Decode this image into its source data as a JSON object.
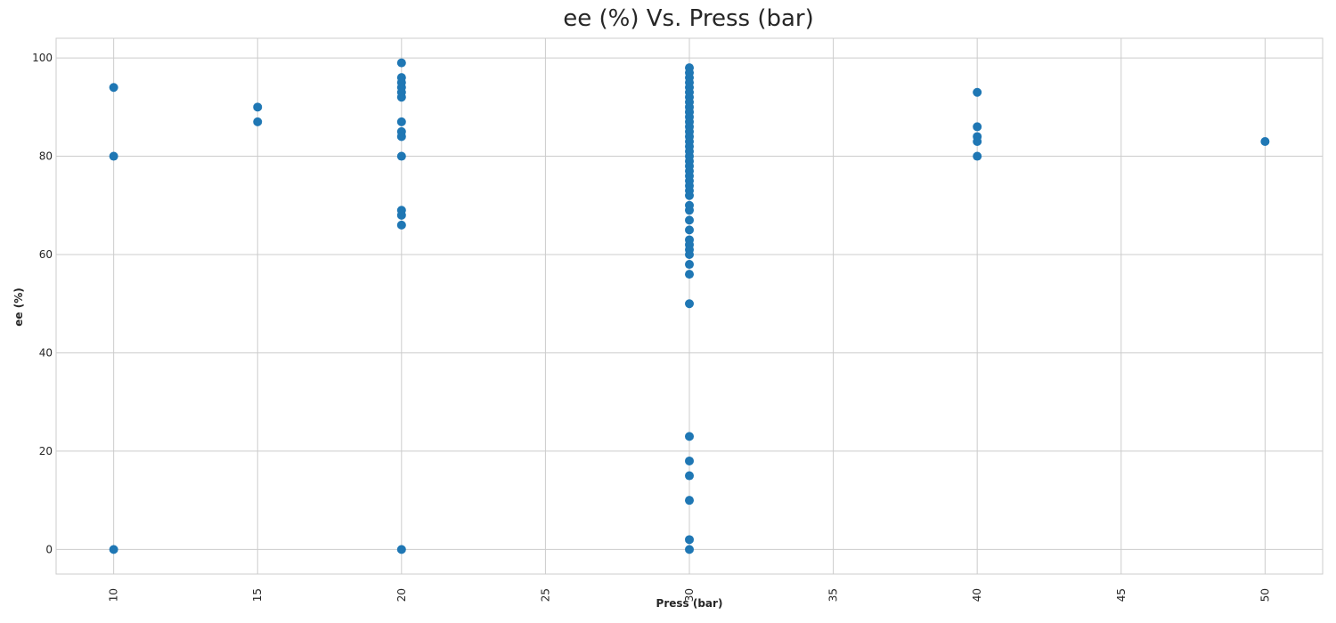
{
  "chart_data": {
    "type": "scatter",
    "title": "ee (%) Vs. Press (bar)",
    "xlabel": "Press (bar)",
    "ylabel": "ee (%)",
    "xlim": [
      8,
      52
    ],
    "ylim": [
      -5,
      104
    ],
    "xticks": [
      "10",
      "15",
      "20",
      "25",
      "30",
      "35",
      "40",
      "45",
      "50"
    ],
    "yticks": [
      "0",
      "20",
      "40",
      "60",
      "80",
      "100"
    ],
    "grid": true,
    "legend": "none",
    "marker_color": "#1f77b4",
    "grid_color": "#cccccc",
    "points": [
      {
        "x": 10,
        "y": 94
      },
      {
        "x": 10,
        "y": 80
      },
      {
        "x": 10,
        "y": 0
      },
      {
        "x": 15,
        "y": 90
      },
      {
        "x": 15,
        "y": 87
      },
      {
        "x": 20,
        "y": 99
      },
      {
        "x": 20,
        "y": 96
      },
      {
        "x": 20,
        "y": 95
      },
      {
        "x": 20,
        "y": 94
      },
      {
        "x": 20,
        "y": 93
      },
      {
        "x": 20,
        "y": 92
      },
      {
        "x": 20,
        "y": 87
      },
      {
        "x": 20,
        "y": 85
      },
      {
        "x": 20,
        "y": 84
      },
      {
        "x": 20,
        "y": 80
      },
      {
        "x": 20,
        "y": 69
      },
      {
        "x": 20,
        "y": 68
      },
      {
        "x": 20,
        "y": 66
      },
      {
        "x": 20,
        "y": 0
      },
      {
        "x": 30,
        "y": 98
      },
      {
        "x": 30,
        "y": 97
      },
      {
        "x": 30,
        "y": 96
      },
      {
        "x": 30,
        "y": 95
      },
      {
        "x": 30,
        "y": 94
      },
      {
        "x": 30,
        "y": 93
      },
      {
        "x": 30,
        "y": 92
      },
      {
        "x": 30,
        "y": 91
      },
      {
        "x": 30,
        "y": 90
      },
      {
        "x": 30,
        "y": 89
      },
      {
        "x": 30,
        "y": 88
      },
      {
        "x": 30,
        "y": 87
      },
      {
        "x": 30,
        "y": 86
      },
      {
        "x": 30,
        "y": 85
      },
      {
        "x": 30,
        "y": 84
      },
      {
        "x": 30,
        "y": 83
      },
      {
        "x": 30,
        "y": 82
      },
      {
        "x": 30,
        "y": 81
      },
      {
        "x": 30,
        "y": 80
      },
      {
        "x": 30,
        "y": 79
      },
      {
        "x": 30,
        "y": 78
      },
      {
        "x": 30,
        "y": 77
      },
      {
        "x": 30,
        "y": 76
      },
      {
        "x": 30,
        "y": 75
      },
      {
        "x": 30,
        "y": 74
      },
      {
        "x": 30,
        "y": 73
      },
      {
        "x": 30,
        "y": 72
      },
      {
        "x": 30,
        "y": 70
      },
      {
        "x": 30,
        "y": 69
      },
      {
        "x": 30,
        "y": 67
      },
      {
        "x": 30,
        "y": 65
      },
      {
        "x": 30,
        "y": 63
      },
      {
        "x": 30,
        "y": 62
      },
      {
        "x": 30,
        "y": 61
      },
      {
        "x": 30,
        "y": 60
      },
      {
        "x": 30,
        "y": 58
      },
      {
        "x": 30,
        "y": 56
      },
      {
        "x": 30,
        "y": 50
      },
      {
        "x": 30,
        "y": 23
      },
      {
        "x": 30,
        "y": 18
      },
      {
        "x": 30,
        "y": 15
      },
      {
        "x": 30,
        "y": 10
      },
      {
        "x": 30,
        "y": 2
      },
      {
        "x": 30,
        "y": 0
      },
      {
        "x": 40,
        "y": 93
      },
      {
        "x": 40,
        "y": 86
      },
      {
        "x": 40,
        "y": 84
      },
      {
        "x": 40,
        "y": 83
      },
      {
        "x": 40,
        "y": 80
      },
      {
        "x": 50,
        "y": 83
      }
    ]
  }
}
